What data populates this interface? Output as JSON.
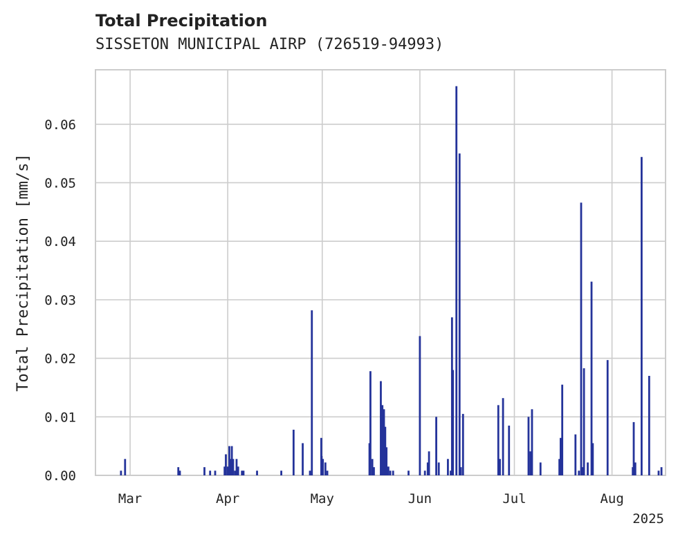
{
  "chart_data": {
    "type": "bar",
    "title": "Total Precipitation",
    "subtitle": "SISSETON MUNICIPAL AIRP (726519-94993)",
    "xlabel": "",
    "ylabel": "Total Precipitation [mm/s]",
    "year_label": "2025",
    "x_unit": "day of year 2025 (1 = Jan 1)",
    "xlim": [
      49,
      230
    ],
    "ylim": [
      0,
      0.0693
    ],
    "grid": true,
    "bar_color": "#24339a",
    "x_ticks": [
      {
        "value": 60,
        "label": "Mar"
      },
      {
        "value": 91,
        "label": "Apr"
      },
      {
        "value": 121,
        "label": "May"
      },
      {
        "value": 152,
        "label": "Jun"
      },
      {
        "value": 182,
        "label": "Jul"
      },
      {
        "value": 213,
        "label": "Aug"
      }
    ],
    "y_ticks": [
      {
        "value": 0.0,
        "label": "0.00"
      },
      {
        "value": 0.01,
        "label": "0.01"
      },
      {
        "value": 0.02,
        "label": "0.02"
      },
      {
        "value": 0.03,
        "label": "0.03"
      },
      {
        "value": 0.04,
        "label": "0.04"
      },
      {
        "value": 0.05,
        "label": "0.05"
      },
      {
        "value": 0.06,
        "label": "0.06"
      }
    ],
    "x": [
      57.1,
      58.4,
      75.3,
      75.8,
      83.6,
      85.4,
      87.0,
      90.0,
      90.4,
      91.0,
      91.5,
      92.0,
      92.3,
      92.7,
      93.3,
      93.8,
      94.3,
      95.5,
      96.0,
      100.3,
      108.0,
      111.9,
      114.8,
      117.1,
      117.7,
      120.7,
      120.8,
      121.2,
      122.0,
      122.6,
      136.0,
      136.3,
      136.9,
      137.4,
      139.6,
      140.1,
      140.6,
      141.0,
      141.4,
      142.0,
      142.6,
      143.5,
      148.4,
      152.0,
      153.6,
      154.5,
      154.9,
      157.2,
      158.0,
      160.9,
      161.8,
      162.2,
      162.5,
      163.6,
      164.6,
      165.0,
      165.7,
      176.9,
      177.4,
      178.4,
      180.3,
      186.5,
      187.1,
      187.6,
      190.3,
      196.3,
      196.7,
      197.2,
      201.4,
      202.5,
      203.2,
      203.7,
      204.1,
      205.3,
      206.5,
      206.9,
      211.6,
      219.6,
      219.9,
      220.4,
      222.4,
      224.8,
      227.8,
      228.7
    ],
    "values": [
      0.0008,
      0.0028,
      0.0014,
      0.0008,
      0.0014,
      0.0008,
      0.0008,
      0.0015,
      0.0036,
      0.0015,
      0.005,
      0.0028,
      0.005,
      0.0028,
      0.0008,
      0.0028,
      0.0015,
      0.0008,
      0.0008,
      0.0008,
      0.0008,
      0.0078,
      0.0055,
      0.0008,
      0.0282,
      0.0064,
      0.0033,
      0.0028,
      0.0022,
      0.0008,
      0.0055,
      0.0178,
      0.0028,
      0.0014,
      0.0161,
      0.012,
      0.0113,
      0.0083,
      0.0048,
      0.0015,
      0.0008,
      0.0008,
      0.0008,
      0.0238,
      0.0008,
      0.0022,
      0.0041,
      0.01,
      0.0022,
      0.0028,
      0.0008,
      0.027,
      0.018,
      0.0665,
      0.055,
      0.0014,
      0.0105,
      0.012,
      0.0028,
      0.0132,
      0.0085,
      0.01,
      0.0041,
      0.0113,
      0.0022,
      0.0028,
      0.0064,
      0.0155,
      0.007,
      0.0008,
      0.0466,
      0.0014,
      0.0183,
      0.0022,
      0.0331,
      0.0055,
      0.0197,
      0.0014,
      0.0091,
      0.0022,
      0.0544,
      0.017,
      0.0008,
      0.0014
    ]
  }
}
